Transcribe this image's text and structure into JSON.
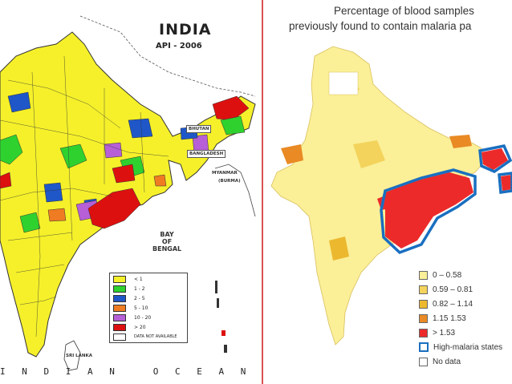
{
  "left_map": {
    "title": "INDIA",
    "subtitle": "API - 2006",
    "countries": {
      "bhutan": "BHUTAN",
      "bangladesh": "BANGLADESH",
      "myanmar": "MYANMAR",
      "burma": "(BURMA)",
      "sri_lanka": "SRI LANKA"
    },
    "sea": [
      "BAY",
      "OF",
      "BENGAL"
    ],
    "ocean": "I N D I A N   O C E A N",
    "legend": [
      {
        "label": "< 1",
        "color": "#f5f02a"
      },
      {
        "label": "1 - 2",
        "color": "#2fd12f"
      },
      {
        "label": "2 - 5",
        "color": "#1f57c8"
      },
      {
        "label": "5 - 10",
        "color": "#ef7b22"
      },
      {
        "label": "10 - 20",
        "color": "#b65fd6"
      },
      {
        "label": "> 20",
        "color": "#dd1010"
      },
      {
        "label": "DATA NOT AVAILABLE",
        "color": "#ffffff"
      }
    ]
  },
  "right_map": {
    "title_line1": "Percentage of blood samples",
    "title_line2": "previously found to contain malaria pa",
    "legend": [
      {
        "label": "0 – 0.58",
        "color": "#fbef97"
      },
      {
        "label": "0.59 – 0.81",
        "color": "#f3d35b"
      },
      {
        "label": "0.82 – 1.14",
        "color": "#ecb82e"
      },
      {
        "label": "1.15  1.53",
        "color": "#e98a24"
      },
      {
        "label": "> 1.53",
        "color": "#ec2a2a"
      },
      {
        "label": "High-malaria states",
        "color": "#1a6fc0"
      },
      {
        "label": "No data",
        "color": "#ffffff"
      }
    ]
  }
}
